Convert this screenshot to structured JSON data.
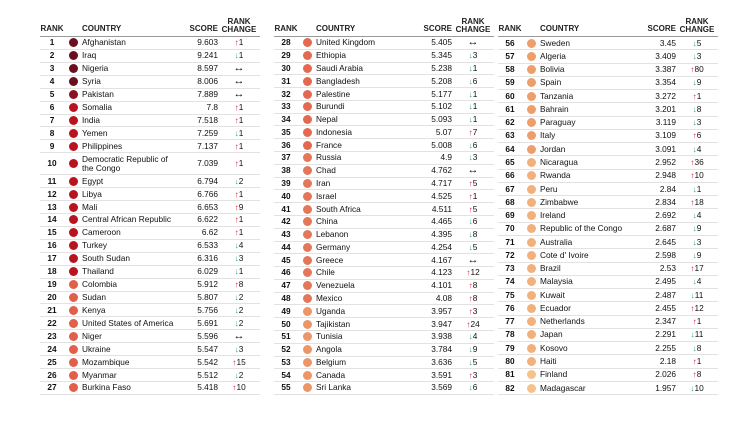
{
  "header": {
    "rank": "RANK",
    "country": "COUNTRY",
    "score": "SCORE",
    "change": "RANK CHANGE"
  },
  "table": {
    "columns": [
      {
        "rows": [
          {
            "rank": 1,
            "country": "Afghanistan",
            "score": 9.603,
            "change": "up",
            "delta": 1,
            "color": "#6b0f1e"
          },
          {
            "rank": 2,
            "country": "Iraq",
            "score": 9.241,
            "change": "down",
            "delta": 1,
            "color": "#6b0f1e"
          },
          {
            "rank": 3,
            "country": "Nigeria",
            "score": 8.597,
            "change": "same",
            "color": "#6b0f1e"
          },
          {
            "rank": 4,
            "country": "Syria",
            "score": 8.006,
            "change": "same",
            "color": "#6b0f1e"
          },
          {
            "rank": 5,
            "country": "Pakistan",
            "score": 7.889,
            "change": "same",
            "color": "#8c1222"
          },
          {
            "rank": 6,
            "country": "Somalia",
            "score": 7.8,
            "change": "up",
            "delta": 1,
            "color": "#b8141f"
          },
          {
            "rank": 7,
            "country": "India",
            "score": 7.518,
            "change": "up",
            "delta": 1,
            "color": "#b8141f"
          },
          {
            "rank": 8,
            "country": "Yemen",
            "score": 7.259,
            "change": "down",
            "delta": 1,
            "color": "#b8141f"
          },
          {
            "rank": 9,
            "country": "Philippines",
            "score": 7.137,
            "change": "up",
            "delta": 1,
            "color": "#b8141f"
          },
          {
            "rank": 10,
            "country": "Democratic Republic of the Congo",
            "score": 7.039,
            "change": "up",
            "delta": 1,
            "color": "#b8141f"
          },
          {
            "rank": 11,
            "country": "Egypt",
            "score": 6.794,
            "change": "down",
            "delta": 2,
            "color": "#b8141f"
          },
          {
            "rank": 12,
            "country": "Libya",
            "score": 6.766,
            "change": "up",
            "delta": 1,
            "color": "#b8141f"
          },
          {
            "rank": 13,
            "country": "Mali",
            "score": 6.653,
            "change": "up",
            "delta": 9,
            "color": "#b8141f"
          },
          {
            "rank": 14,
            "country": "Central African Republic",
            "score": 6.622,
            "change": "up",
            "delta": 1,
            "color": "#b8141f"
          },
          {
            "rank": 15,
            "country": "Cameroon",
            "score": 6.62,
            "change": "up",
            "delta": 1,
            "color": "#b8141f"
          },
          {
            "rank": 16,
            "country": "Turkey",
            "score": 6.533,
            "change": "down",
            "delta": 4,
            "color": "#b8141f"
          },
          {
            "rank": 17,
            "country": "South Sudan",
            "score": 6.316,
            "change": "down",
            "delta": 3,
            "color": "#b8141f"
          },
          {
            "rank": 18,
            "country": "Thailand",
            "score": 6.029,
            "change": "down",
            "delta": 1,
            "color": "#b8141f"
          },
          {
            "rank": 19,
            "country": "Colombia",
            "score": 5.912,
            "change": "up",
            "delta": 8,
            "color": "#e0604c"
          },
          {
            "rank": 20,
            "country": "Sudan",
            "score": 5.807,
            "change": "down",
            "delta": 2,
            "color": "#e0604c"
          },
          {
            "rank": 21,
            "country": "Kenya",
            "score": 5.756,
            "change": "down",
            "delta": 2,
            "color": "#e0604c"
          },
          {
            "rank": 22,
            "country": "United States of America",
            "score": 5.691,
            "change": "down",
            "delta": 2,
            "color": "#e0604c"
          },
          {
            "rank": 23,
            "country": "Niger",
            "score": 5.596,
            "change": "same",
            "color": "#e0604c"
          },
          {
            "rank": 24,
            "country": "Ukraine",
            "score": 5.547,
            "change": "down",
            "delta": 3,
            "color": "#e0604c"
          },
          {
            "rank": 25,
            "country": "Mozambique",
            "score": 5.542,
            "change": "up",
            "delta": 15,
            "color": "#e0604c"
          },
          {
            "rank": 26,
            "country": "Myanmar",
            "score": 5.512,
            "change": "down",
            "delta": 2,
            "color": "#e0604c"
          },
          {
            "rank": 27,
            "country": "Burkina Faso",
            "score": 5.418,
            "change": "up",
            "delta": 10,
            "color": "#e0604c"
          }
        ]
      },
      {
        "rows": [
          {
            "rank": 28,
            "country": "United Kingdom",
            "score": 5.405,
            "change": "same",
            "color": "#e36a50"
          },
          {
            "rank": 29,
            "country": "Ethiopia",
            "score": 5.345,
            "change": "down",
            "delta": 3,
            "color": "#e36a50"
          },
          {
            "rank": 30,
            "country": "Saudi Arabia",
            "score": 5.238,
            "change": "down",
            "delta": 1,
            "color": "#e36a50"
          },
          {
            "rank": 31,
            "country": "Bangladesh",
            "score": 5.208,
            "change": "down",
            "delta": 6,
            "color": "#e36a50"
          },
          {
            "rank": 32,
            "country": "Palestine",
            "score": 5.177,
            "change": "down",
            "delta": 1,
            "color": "#e36a50"
          },
          {
            "rank": 33,
            "country": "Burundi",
            "score": 5.102,
            "change": "down",
            "delta": 1,
            "color": "#e36a50"
          },
          {
            "rank": 34,
            "country": "Nepal",
            "score": 5.093,
            "change": "down",
            "delta": 1,
            "color": "#e36a50"
          },
          {
            "rank": 35,
            "country": "Indonesia",
            "score": 5.07,
            "change": "up",
            "delta": 7,
            "color": "#e36a50"
          },
          {
            "rank": 36,
            "country": "France",
            "score": 5.008,
            "change": "down",
            "delta": 6,
            "color": "#e36a50"
          },
          {
            "rank": 37,
            "country": "Russia",
            "score": 4.9,
            "change": "down",
            "delta": 3,
            "color": "#e4775a"
          },
          {
            "rank": 38,
            "country": "Chad",
            "score": 4.762,
            "change": "same",
            "color": "#e4775a"
          },
          {
            "rank": 39,
            "country": "Iran",
            "score": 4.717,
            "change": "up",
            "delta": 5,
            "color": "#e4775a"
          },
          {
            "rank": 40,
            "country": "Israel",
            "score": 4.525,
            "change": "up",
            "delta": 1,
            "color": "#e4775a"
          },
          {
            "rank": 41,
            "country": "South Africa",
            "score": 4.511,
            "change": "up",
            "delta": 5,
            "color": "#e4775a"
          },
          {
            "rank": 42,
            "country": "China",
            "score": 4.465,
            "change": "down",
            "delta": 6,
            "color": "#e4775a"
          },
          {
            "rank": 43,
            "country": "Lebanon",
            "score": 4.395,
            "change": "down",
            "delta": 8,
            "color": "#e4775a"
          },
          {
            "rank": 44,
            "country": "Germany",
            "score": 4.254,
            "change": "down",
            "delta": 5,
            "color": "#e4775a"
          },
          {
            "rank": 45,
            "country": "Greece",
            "score": 4.167,
            "change": "same",
            "color": "#e4775a"
          },
          {
            "rank": 46,
            "country": "Chile",
            "score": 4.123,
            "change": "up",
            "delta": 12,
            "color": "#e4775a"
          },
          {
            "rank": 47,
            "country": "Venezuela",
            "score": 4.101,
            "change": "up",
            "delta": 8,
            "color": "#e4775a"
          },
          {
            "rank": 48,
            "country": "Mexico",
            "score": 4.08,
            "change": "up",
            "delta": 8,
            "color": "#e4775a"
          },
          {
            "rank": 49,
            "country": "Uganda",
            "score": 3.957,
            "change": "up",
            "delta": 3,
            "color": "#ec9566"
          },
          {
            "rank": 50,
            "country": "Tajikistan",
            "score": 3.947,
            "change": "up",
            "delta": 24,
            "color": "#ec9566"
          },
          {
            "rank": 51,
            "country": "Tunisia",
            "score": 3.938,
            "change": "down",
            "delta": 4,
            "color": "#ec9566"
          },
          {
            "rank": 52,
            "country": "Angola",
            "score": 3.784,
            "change": "down",
            "delta": 9,
            "color": "#ec9566"
          },
          {
            "rank": 53,
            "country": "Belgium",
            "score": 3.636,
            "change": "down",
            "delta": 5,
            "color": "#ec9566"
          },
          {
            "rank": 54,
            "country": "Canada",
            "score": 3.591,
            "change": "up",
            "delta": 3,
            "color": "#ec9566"
          },
          {
            "rank": 55,
            "country": "Sri Lanka",
            "score": 3.569,
            "change": "down",
            "delta": 6,
            "color": "#ec9566"
          }
        ]
      },
      {
        "rows": [
          {
            "rank": 56,
            "country": "Sweden",
            "score": 3.45,
            "change": "down",
            "delta": 5,
            "color": "#ee9e6b"
          },
          {
            "rank": 57,
            "country": "Algeria",
            "score": 3.409,
            "change": "down",
            "delta": 3,
            "color": "#ee9e6b"
          },
          {
            "rank": 58,
            "country": "Bolivia",
            "score": 3.387,
            "change": "up",
            "delta": 80,
            "color": "#ee9e6b"
          },
          {
            "rank": 59,
            "country": "Spain",
            "score": 3.354,
            "change": "down",
            "delta": 9,
            "color": "#ee9e6b"
          },
          {
            "rank": 60,
            "country": "Tanzania",
            "score": 3.272,
            "change": "up",
            "delta": 1,
            "color": "#ee9e6b"
          },
          {
            "rank": 61,
            "country": "Bahrain",
            "score": 3.201,
            "change": "down",
            "delta": 8,
            "color": "#ee9e6b"
          },
          {
            "rank": 62,
            "country": "Paraguay",
            "score": 3.119,
            "change": "down",
            "delta": 3,
            "color": "#ee9e6b"
          },
          {
            "rank": 63,
            "country": "Italy",
            "score": 3.109,
            "change": "up",
            "delta": 6,
            "color": "#ee9e6b"
          },
          {
            "rank": 64,
            "country": "Jordan",
            "score": 3.091,
            "change": "down",
            "delta": 4,
            "color": "#ee9e6b"
          },
          {
            "rank": 65,
            "country": "Nicaragua",
            "score": 2.952,
            "change": "up",
            "delta": 36,
            "color": "#f2b07a"
          },
          {
            "rank": 66,
            "country": "Rwanda",
            "score": 2.948,
            "change": "up",
            "delta": 10,
            "color": "#f2b07a"
          },
          {
            "rank": 67,
            "country": "Peru",
            "score": 2.84,
            "change": "down",
            "delta": 1,
            "color": "#f2b07a"
          },
          {
            "rank": 68,
            "country": "Zimbabwe",
            "score": 2.834,
            "change": "up",
            "delta": 18,
            "color": "#f2b07a"
          },
          {
            "rank": 69,
            "country": "Ireland",
            "score": 2.692,
            "change": "down",
            "delta": 4,
            "color": "#f2b07a"
          },
          {
            "rank": 70,
            "country": "Republic of the Congo",
            "score": 2.687,
            "change": "down",
            "delta": 9,
            "color": "#f2b07a"
          },
          {
            "rank": 71,
            "country": "Australia",
            "score": 2.645,
            "change": "down",
            "delta": 3,
            "color": "#f2b07a"
          },
          {
            "rank": 72,
            "country": "Cote d' Ivoire",
            "score": 2.598,
            "change": "down",
            "delta": 9,
            "color": "#f2b07a"
          },
          {
            "rank": 73,
            "country": "Brazil",
            "score": 2.53,
            "change": "up",
            "delta": 17,
            "color": "#f2b07a"
          },
          {
            "rank": 74,
            "country": "Malaysia",
            "score": 2.495,
            "change": "down",
            "delta": 4,
            "color": "#f2b07a"
          },
          {
            "rank": 75,
            "country": "Kuwait",
            "score": 2.487,
            "change": "down",
            "delta": 11,
            "color": "#f2b07a"
          },
          {
            "rank": 76,
            "country": "Ecuador",
            "score": 2.455,
            "change": "up",
            "delta": 12,
            "color": "#f2b07a"
          },
          {
            "rank": 77,
            "country": "Netherlands",
            "score": 2.347,
            "change": "up",
            "delta": 1,
            "color": "#f2b07a"
          },
          {
            "rank": 78,
            "country": "Japan",
            "score": 2.291,
            "change": "down",
            "delta": 11,
            "color": "#f2b07a"
          },
          {
            "rank": 79,
            "country": "Kosovo",
            "score": 2.255,
            "change": "down",
            "delta": 8,
            "color": "#f2b07a"
          },
          {
            "rank": 80,
            "country": "Haiti",
            "score": 2.18,
            "change": "up",
            "delta": 1,
            "color": "#f2b07a"
          },
          {
            "rank": 81,
            "country": "Finland",
            "score": 2.026,
            "change": "up",
            "delta": 8,
            "color": "#f5c28a"
          },
          {
            "rank": 82,
            "country": "Madagascar",
            "score": 1.957,
            "change": "down",
            "delta": 10,
            "color": "#f5c28a"
          }
        ]
      }
    ]
  }
}
